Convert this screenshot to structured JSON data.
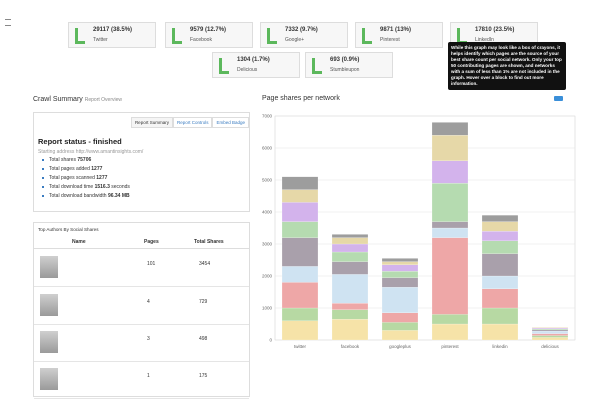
{
  "cards": [
    {
      "value": "29117 (38.5%)",
      "label": "Twitter"
    },
    {
      "value": "9579 (12.7%)",
      "label": "Facebook"
    },
    {
      "value": "7332 (9.7%)",
      "label": "Google+"
    },
    {
      "value": "9871 (13%)",
      "label": "Pinterest"
    },
    {
      "value": "17810 (23.5%)",
      "label": "LinkedIn"
    },
    {
      "value": "1304 (1.7%)",
      "label": "Delicious"
    },
    {
      "value": "693 (0.9%)",
      "label": "Stumbleupon"
    }
  ],
  "tooltip": "While this graph may look like a box of crayons, it helps identify which pages are the source of your best share count per social network. Only your top 50 contributing pages are shown, and networks with a sum of less than 1% are not included in the graph. Hover over a block to find out more information.",
  "summary": {
    "title": "Crawl Summary",
    "subtitle": "Report Overview",
    "tabs": [
      "Report Summary",
      "Report Controls",
      "Embed Badge"
    ],
    "status": "Report status - finished",
    "address": "Starting address http://www.amantinsights.com/",
    "stats": [
      {
        "label": "Total shares",
        "value": "75706"
      },
      {
        "label": "Total pages added",
        "value": "1277"
      },
      {
        "label": "Total pages scanned",
        "value": "1277"
      },
      {
        "label": "Total download time",
        "value": "1516.3",
        "unit": "seconds"
      },
      {
        "label": "Total download bandwidth",
        "value": "96.34 MB"
      }
    ]
  },
  "authors": {
    "title": "Top Authors By Social Shares",
    "columns": [
      "Name",
      "Pages",
      "Total Shares"
    ],
    "rows": [
      [
        "101",
        "3454"
      ],
      [
        "4",
        "729"
      ],
      [
        "3",
        "498"
      ],
      [
        "1",
        "175"
      ]
    ]
  },
  "chart_data": {
    "type": "stacked_bar",
    "title": "Page shares per network",
    "categories": [
      "twitter",
      "facebook",
      "googleplus",
      "pinterest",
      "linkedin",
      "delicious"
    ],
    "ylim": [
      0,
      7000
    ],
    "yticks": [
      0,
      1000,
      2000,
      3000,
      4000,
      5000,
      6000,
      7000
    ],
    "grid": true,
    "series": [
      {
        "color": "#f6e3a8",
        "values": [
          600,
          650,
          300,
          500,
          500,
          80
        ]
      },
      {
        "color": "#b7d9a3",
        "values": [
          400,
          300,
          250,
          300,
          500,
          60
        ]
      },
      {
        "color": "#eea7a7",
        "values": [
          800,
          200,
          300,
          2400,
          600,
          60
        ]
      },
      {
        "color": "#cfe3f2",
        "values": [
          500,
          900,
          800,
          300,
          400,
          80
        ]
      },
      {
        "color": "#a9a0ab",
        "values": [
          900,
          400,
          300,
          200,
          700,
          40
        ]
      },
      {
        "color": "#b5dbb0",
        "values": [
          500,
          300,
          200,
          1200,
          400,
          30
        ]
      },
      {
        "color": "#d3b3ec",
        "values": [
          600,
          250,
          200,
          700,
          300,
          30
        ]
      },
      {
        "color": "#e6d8a8",
        "values": [
          400,
          200,
          100,
          800,
          300,
          20
        ]
      },
      {
        "color": "#9d9d9d",
        "values": [
          400,
          100,
          100,
          400,
          200,
          0
        ]
      }
    ]
  }
}
